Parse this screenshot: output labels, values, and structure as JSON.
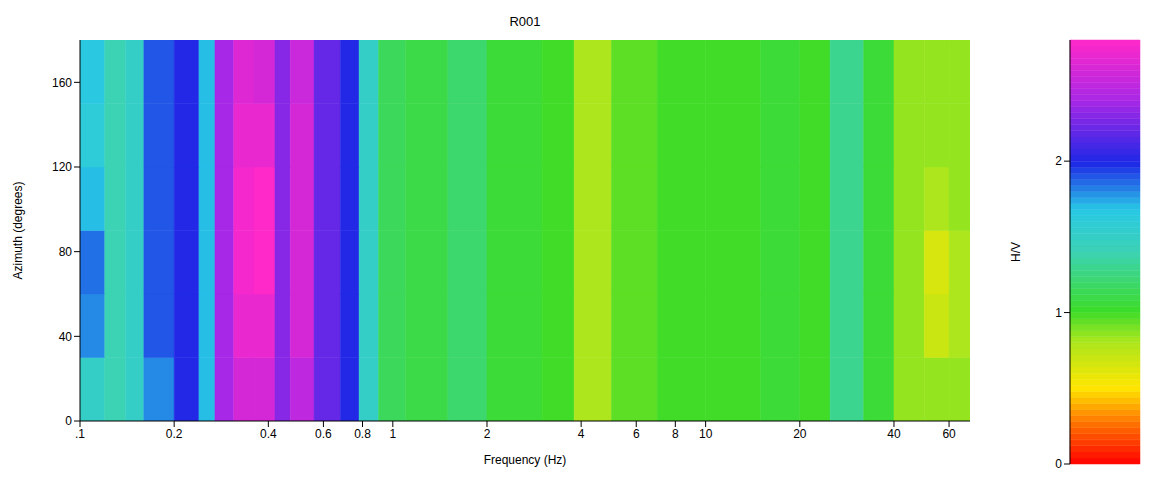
{
  "chart_data": {
    "type": "heatmap",
    "title": "R001",
    "x_label": "Frequency (Hz)",
    "y_label": "Azimuth (degrees)",
    "colorbar_label": "H/V",
    "log": "x",
    "xlim": [
      0.1,
      70
    ],
    "xticks": [
      {
        "value": 0.1,
        "label": ".1"
      },
      0.2,
      0.4,
      0.6,
      0.8,
      1,
      2,
      4,
      6,
      8,
      10,
      20,
      40,
      60
    ],
    "ylim": [
      0,
      180
    ],
    "yticks": [
      0,
      40,
      80,
      120,
      160
    ],
    "x_edges": [
      0.1,
      0.12,
      0.14,
      0.16,
      0.2,
      0.24,
      0.27,
      0.31,
      0.36,
      0.42,
      0.47,
      0.56,
      0.68,
      0.78,
      0.9,
      1.1,
      1.5,
      2,
      3,
      3.8,
      5,
      7,
      10,
      15,
      20,
      25,
      32,
      40,
      50,
      60,
      70
    ],
    "y_edges": [
      0,
      30,
      60,
      90,
      120,
      150,
      180
    ],
    "values": [
      [
        1.5,
        1.4,
        1.5,
        1.8,
        2.0,
        1.7,
        2.4,
        2.6,
        2.6,
        2.3,
        2.5,
        2.2,
        2.0,
        1.5,
        1.15,
        1.1,
        1.2,
        1.05,
        1.0,
        0.8,
        0.95,
        1.0,
        1.0,
        1.05,
        1.0,
        1.3,
        1.05,
        0.85,
        0.85,
        0.85
      ],
      [
        1.8,
        1.4,
        1.5,
        1.9,
        2.0,
        1.7,
        2.4,
        2.7,
        2.7,
        2.3,
        2.6,
        2.2,
        2.0,
        1.5,
        1.15,
        1.1,
        1.2,
        1.05,
        1.0,
        0.8,
        0.95,
        1.0,
        1.0,
        1.05,
        1.0,
        1.3,
        1.05,
        0.85,
        0.7,
        0.8
      ],
      [
        1.85,
        1.4,
        1.5,
        1.9,
        2.0,
        1.7,
        2.4,
        2.75,
        2.85,
        2.3,
        2.6,
        2.2,
        2.0,
        1.5,
        1.15,
        1.1,
        1.2,
        1.05,
        1.0,
        0.8,
        0.95,
        1.0,
        1.0,
        1.05,
        1.0,
        1.3,
        1.05,
        0.85,
        0.65,
        0.8
      ],
      [
        1.7,
        1.4,
        1.5,
        1.9,
        2.0,
        1.7,
        2.4,
        2.75,
        2.8,
        2.3,
        2.6,
        2.2,
        2.0,
        1.5,
        1.15,
        1.1,
        1.2,
        1.05,
        1.0,
        0.8,
        0.95,
        1.0,
        1.0,
        1.05,
        1.0,
        1.3,
        1.05,
        0.85,
        0.8,
        0.85
      ],
      [
        1.6,
        1.4,
        1.5,
        1.9,
        2.0,
        1.7,
        2.4,
        2.7,
        2.7,
        2.3,
        2.6,
        2.2,
        2.0,
        1.5,
        1.15,
        1.1,
        1.2,
        1.05,
        1.0,
        0.8,
        0.95,
        1.0,
        1.0,
        1.05,
        1.0,
        1.3,
        1.05,
        0.85,
        0.85,
        0.85
      ],
      [
        1.65,
        1.4,
        1.5,
        1.9,
        2.0,
        1.7,
        2.4,
        2.65,
        2.6,
        2.3,
        2.55,
        2.2,
        2.0,
        1.5,
        1.15,
        1.1,
        1.2,
        1.05,
        1.0,
        0.8,
        0.95,
        1.0,
        1.0,
        1.05,
        1.0,
        1.3,
        1.05,
        0.85,
        0.85,
        0.85
      ]
    ],
    "colorbar_range": [
      0,
      2.8
    ],
    "colorbar_ticks": [
      0,
      1,
      2
    ]
  }
}
